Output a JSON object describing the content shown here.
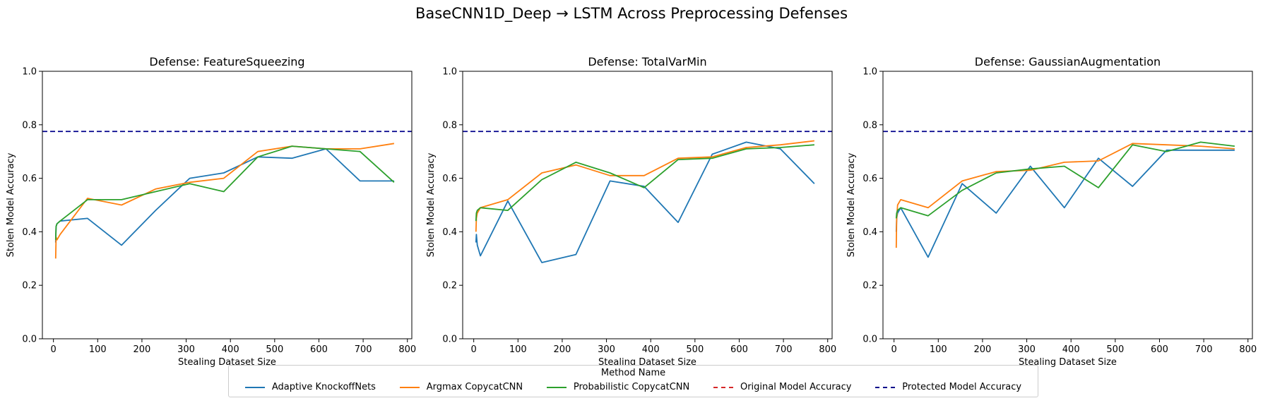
{
  "figure_title": "BaseCNN1D_Deep → LSTM Across Preprocessing Defenses",
  "legend": {
    "title": "Method Name",
    "entries": [
      {
        "name": "Adaptive KnockoffNets",
        "color": "#1f77b4",
        "style": "solid"
      },
      {
        "name": "Argmax CopycatCNN",
        "color": "#ff7f0e",
        "style": "solid"
      },
      {
        "name": "Probabilistic CopycatCNN",
        "color": "#2ca02c",
        "style": "solid"
      },
      {
        "name": "Original Model Accuracy",
        "color": "#d62728",
        "style": "dashed"
      },
      {
        "name": "Protected Model Accuracy",
        "color": "#00008b",
        "style": "dashed"
      }
    ],
    "placement": "bottom-center"
  },
  "chart_data": [
    {
      "type": "line",
      "title": "Defense: FeatureSqueezing",
      "xlabel": "Stealing Dataset Size",
      "ylabel": "Stolen Model Accuracy",
      "xlim": [
        -25,
        810
      ],
      "ylim": [
        0,
        1
      ],
      "xticks": [
        0,
        100,
        200,
        300,
        400,
        500,
        600,
        700,
        800
      ],
      "yticks": [
        0.0,
        0.2,
        0.4,
        0.6,
        0.8,
        1.0
      ],
      "protected_accuracy": 0.775,
      "series": [
        {
          "name": "Adaptive KnockoffNets",
          "color": "#1f77b4",
          "x": [
            5,
            6,
            8,
            15,
            77,
            154,
            231,
            308,
            385,
            462,
            539,
            616,
            693,
            770
          ],
          "y": [
            0.36,
            0.42,
            0.43,
            0.44,
            0.45,
            0.35,
            0.48,
            0.6,
            0.62,
            0.68,
            0.675,
            0.71,
            0.59,
            0.59
          ]
        },
        {
          "name": "Argmax CopycatCNN",
          "color": "#ff7f0e",
          "x": [
            5,
            6,
            8,
            15,
            77,
            154,
            231,
            308,
            385,
            462,
            539,
            616,
            693,
            770
          ],
          "y": [
            0.3,
            0.38,
            0.37,
            0.39,
            0.525,
            0.5,
            0.56,
            0.585,
            0.6,
            0.7,
            0.72,
            0.71,
            0.71,
            0.73
          ]
        },
        {
          "name": "Probabilistic CopycatCNN",
          "color": "#2ca02c",
          "x": [
            5,
            6,
            8,
            15,
            77,
            154,
            231,
            308,
            385,
            462,
            539,
            616,
            693,
            770
          ],
          "y": [
            0.37,
            0.42,
            0.43,
            0.44,
            0.52,
            0.52,
            0.55,
            0.58,
            0.55,
            0.68,
            0.72,
            0.71,
            0.7,
            0.585
          ]
        }
      ]
    },
    {
      "type": "line",
      "title": "Defense: TotalVarMin",
      "xlabel": "Stealing Dataset Size",
      "ylabel": "Stolen Model Accuracy",
      "xlim": [
        -25,
        810
      ],
      "ylim": [
        0,
        1
      ],
      "xticks": [
        0,
        100,
        200,
        300,
        400,
        500,
        600,
        700,
        800
      ],
      "yticks": [
        0.0,
        0.2,
        0.4,
        0.6,
        0.8,
        1.0
      ],
      "protected_accuracy": 0.775,
      "series": [
        {
          "name": "Adaptive KnockoffNets",
          "color": "#1f77b4",
          "x": [
            5,
            6,
            8,
            15,
            77,
            154,
            231,
            308,
            385,
            462,
            539,
            616,
            693,
            770
          ],
          "y": [
            0.36,
            0.39,
            0.35,
            0.31,
            0.515,
            0.285,
            0.315,
            0.59,
            0.57,
            0.435,
            0.69,
            0.735,
            0.71,
            0.58
          ]
        },
        {
          "name": "Argmax CopycatCNN",
          "color": "#ff7f0e",
          "x": [
            5,
            6,
            8,
            15,
            77,
            154,
            231,
            308,
            385,
            462,
            539,
            616,
            693,
            770
          ],
          "y": [
            0.4,
            0.45,
            0.47,
            0.49,
            0.52,
            0.62,
            0.65,
            0.61,
            0.61,
            0.675,
            0.68,
            0.715,
            0.725,
            0.74
          ]
        },
        {
          "name": "Probabilistic CopycatCNN",
          "color": "#2ca02c",
          "x": [
            5,
            6,
            8,
            15,
            77,
            154,
            231,
            308,
            385,
            462,
            539,
            616,
            693,
            770
          ],
          "y": [
            0.44,
            0.47,
            0.48,
            0.49,
            0.48,
            0.595,
            0.66,
            0.62,
            0.565,
            0.67,
            0.675,
            0.71,
            0.715,
            0.725
          ]
        }
      ]
    },
    {
      "type": "line",
      "title": "Defense: GaussianAugmentation",
      "xlabel": "Stealing Dataset Size",
      "ylabel": "Stolen Model Accuracy",
      "xlim": [
        -25,
        810
      ],
      "ylim": [
        0,
        1
      ],
      "xticks": [
        0,
        100,
        200,
        300,
        400,
        500,
        600,
        700,
        800
      ],
      "yticks": [
        0.0,
        0.2,
        0.4,
        0.6,
        0.8,
        1.0
      ],
      "protected_accuracy": 0.775,
      "series": [
        {
          "name": "Adaptive KnockoffNets",
          "color": "#1f77b4",
          "x": [
            5,
            6,
            8,
            15,
            77,
            154,
            231,
            308,
            385,
            462,
            539,
            616,
            693,
            770
          ],
          "y": [
            0.4,
            0.45,
            0.47,
            0.49,
            0.305,
            0.58,
            0.47,
            0.645,
            0.49,
            0.675,
            0.57,
            0.705,
            0.705,
            0.705
          ]
        },
        {
          "name": "Argmax CopycatCNN",
          "color": "#ff7f0e",
          "x": [
            5,
            6,
            8,
            15,
            77,
            154,
            231,
            308,
            385,
            462,
            539,
            616,
            693,
            770
          ],
          "y": [
            0.34,
            0.45,
            0.5,
            0.52,
            0.49,
            0.59,
            0.625,
            0.63,
            0.66,
            0.665,
            0.73,
            0.725,
            0.72,
            0.71
          ]
        },
        {
          "name": "Probabilistic CopycatCNN",
          "color": "#2ca02c",
          "x": [
            5,
            6,
            8,
            15,
            77,
            154,
            231,
            308,
            385,
            462,
            539,
            616,
            693,
            770
          ],
          "y": [
            0.45,
            0.47,
            0.48,
            0.49,
            0.46,
            0.555,
            0.62,
            0.635,
            0.645,
            0.565,
            0.725,
            0.7,
            0.735,
            0.72
          ]
        }
      ]
    }
  ]
}
